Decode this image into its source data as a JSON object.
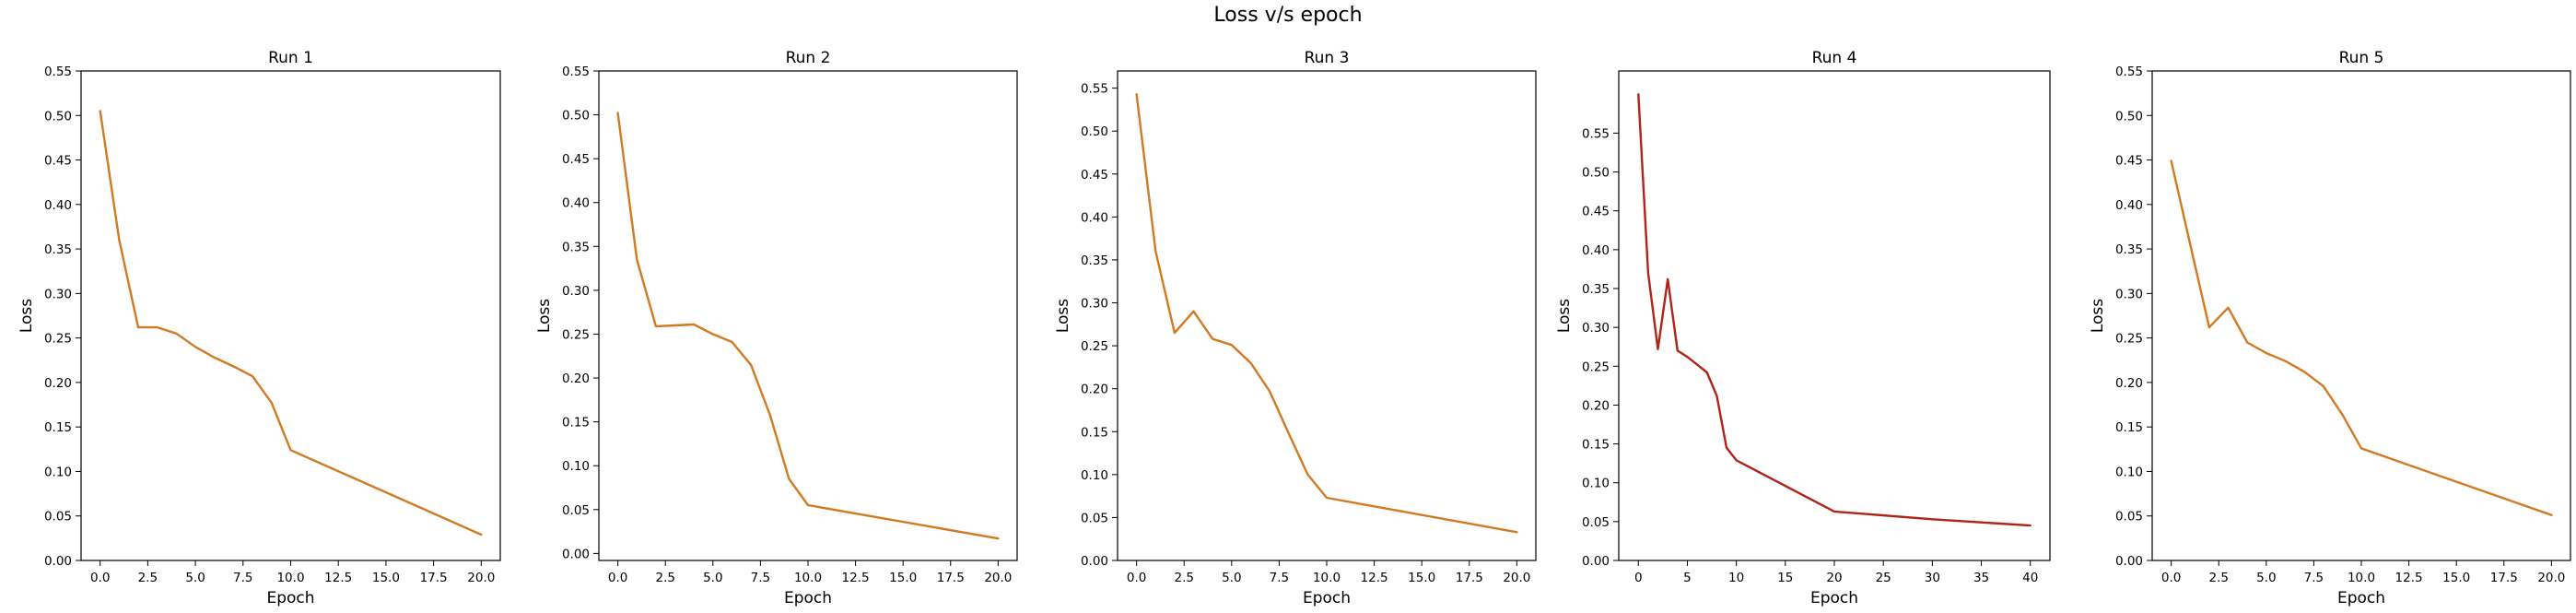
{
  "figure": {
    "suptitle": "Loss v/s epoch"
  },
  "chart_data": [
    {
      "type": "line",
      "title": "Run 1",
      "xlabel": "Epoch",
      "ylabel": "Loss",
      "xlim": [
        -1,
        21
      ],
      "ylim": [
        0,
        0.55
      ],
      "xticks": [
        0.0,
        2.5,
        5.0,
        7.5,
        10.0,
        12.5,
        15.0,
        17.5,
        20.0
      ],
      "xtick_labels": [
        "0.0",
        "2.5",
        "5.0",
        "7.5",
        "10.0",
        "12.5",
        "15.0",
        "17.5",
        "20.0"
      ],
      "yticks": [
        0,
        0.05,
        0.1,
        0.15,
        0.2,
        0.25,
        0.3,
        0.35,
        0.4,
        0.45,
        0.5,
        0.55
      ],
      "ytick_labels": [
        "0.00",
        "0.05",
        "0.10",
        "0.15",
        "0.20",
        "0.25",
        "0.30",
        "0.35",
        "0.40",
        "0.45",
        "0.50",
        "0.55"
      ],
      "grid": false,
      "color": "#d17a22",
      "series": [
        {
          "x": [
            0,
            1,
            2,
            3,
            4,
            5,
            6,
            7,
            8,
            9,
            10,
            20
          ],
          "y": [
            0.505,
            0.36,
            0.262,
            0.262,
            0.255,
            0.24,
            0.228,
            0.218,
            0.207,
            0.177,
            0.124,
            0.029
          ]
        }
      ]
    },
    {
      "type": "line",
      "title": "Run 2",
      "xlabel": "Epoch",
      "ylabel": "Loss",
      "xlim": [
        -1,
        21
      ],
      "ylim": [
        -0.008,
        0.55
      ],
      "xticks": [
        0.0,
        2.5,
        5.0,
        7.5,
        10.0,
        12.5,
        15.0,
        17.5,
        20.0
      ],
      "xtick_labels": [
        "0.0",
        "2.5",
        "5.0",
        "7.5",
        "10.0",
        "12.5",
        "15.0",
        "17.5",
        "20.0"
      ],
      "yticks": [
        0,
        0.05,
        0.1,
        0.15,
        0.2,
        0.25,
        0.3,
        0.35,
        0.4,
        0.45,
        0.5,
        0.55
      ],
      "ytick_labels": [
        "0.00",
        "0.05",
        "0.10",
        "0.15",
        "0.20",
        "0.25",
        "0.30",
        "0.35",
        "0.40",
        "0.45",
        "0.50",
        "0.55"
      ],
      "grid": false,
      "color": "#d17a22",
      "series": [
        {
          "x": [
            0,
            1,
            2,
            3,
            4,
            5,
            6,
            7,
            8,
            9,
            10,
            20
          ],
          "y": [
            0.502,
            0.335,
            0.259,
            0.26,
            0.261,
            0.25,
            0.241,
            0.215,
            0.158,
            0.085,
            0.055,
            0.017
          ]
        }
      ]
    },
    {
      "type": "line",
      "title": "Run 3",
      "xlabel": "Epoch",
      "ylabel": "Loss",
      "xlim": [
        -1,
        21
      ],
      "ylim": [
        0,
        0.57
      ],
      "xticks": [
        0.0,
        2.5,
        5.0,
        7.5,
        10.0,
        12.5,
        15.0,
        17.5,
        20.0
      ],
      "xtick_labels": [
        "0.0",
        "2.5",
        "5.0",
        "7.5",
        "10.0",
        "12.5",
        "15.0",
        "17.5",
        "20.0"
      ],
      "yticks": [
        0,
        0.05,
        0.1,
        0.15,
        0.2,
        0.25,
        0.3,
        0.35,
        0.4,
        0.45,
        0.5,
        0.55
      ],
      "ytick_labels": [
        "0.00",
        "0.05",
        "0.10",
        "0.15",
        "0.20",
        "0.25",
        "0.30",
        "0.35",
        "0.40",
        "0.45",
        "0.50",
        "0.55"
      ],
      "grid": false,
      "color": "#d17a22",
      "series": [
        {
          "x": [
            0,
            1,
            2,
            3,
            4,
            5,
            6,
            7,
            8,
            9,
            10,
            20
          ],
          "y": [
            0.543,
            0.36,
            0.265,
            0.29,
            0.258,
            0.251,
            0.23,
            0.197,
            0.148,
            0.1,
            0.073,
            0.033
          ]
        }
      ]
    },
    {
      "type": "line",
      "title": "Run 4",
      "xlabel": "Epoch",
      "ylabel": "Loss",
      "xlim": [
        -2,
        42
      ],
      "ylim": [
        0,
        0.63
      ],
      "xticks": [
        0,
        5,
        10,
        15,
        20,
        25,
        30,
        35,
        40
      ],
      "xtick_labels": [
        "0",
        "5",
        "10",
        "15",
        "20",
        "25",
        "30",
        "35",
        "40"
      ],
      "yticks": [
        0,
        0.05,
        0.1,
        0.15,
        0.2,
        0.25,
        0.3,
        0.35,
        0.4,
        0.45,
        0.5,
        0.55
      ],
      "ytick_labels": [
        "0.00",
        "0.05",
        "0.10",
        "0.15",
        "0.20",
        "0.25",
        "0.30",
        "0.35",
        "0.40",
        "0.45",
        "0.50",
        "0.55"
      ],
      "grid": false,
      "color": "#b02418",
      "series": [
        {
          "x": [
            0,
            1,
            2,
            3,
            4,
            5,
            6,
            7,
            8,
            9,
            10,
            20,
            30,
            40
          ],
          "y": [
            0.6,
            0.37,
            0.272,
            0.362,
            0.27,
            0.262,
            0.252,
            0.242,
            0.212,
            0.145,
            0.129,
            0.063,
            0.053,
            0.045
          ]
        }
      ]
    },
    {
      "type": "line",
      "title": "Run 5",
      "xlabel": "Epoch",
      "ylabel": "Loss",
      "xlim": [
        -1,
        21
      ],
      "ylim": [
        0,
        0.55
      ],
      "xticks": [
        0.0,
        2.5,
        5.0,
        7.5,
        10.0,
        12.5,
        15.0,
        17.5,
        20.0
      ],
      "xtick_labels": [
        "0.0",
        "2.5",
        "5.0",
        "7.5",
        "10.0",
        "12.5",
        "15.0",
        "17.5",
        "20.0"
      ],
      "yticks": [
        0,
        0.05,
        0.1,
        0.15,
        0.2,
        0.25,
        0.3,
        0.35,
        0.4,
        0.45,
        0.5,
        0.55
      ],
      "ytick_labels": [
        "0.00",
        "0.05",
        "0.10",
        "0.15",
        "0.20",
        "0.25",
        "0.30",
        "0.35",
        "0.40",
        "0.45",
        "0.50",
        "0.55"
      ],
      "grid": false,
      "color": "#d17a22",
      "series": [
        {
          "x": [
            0,
            1,
            2,
            3,
            4,
            5,
            6,
            7,
            8,
            9,
            10,
            20
          ],
          "y": [
            0.449,
            0.355,
            0.262,
            0.284,
            0.245,
            0.233,
            0.224,
            0.212,
            0.196,
            0.164,
            0.126,
            0.051
          ]
        }
      ]
    }
  ]
}
